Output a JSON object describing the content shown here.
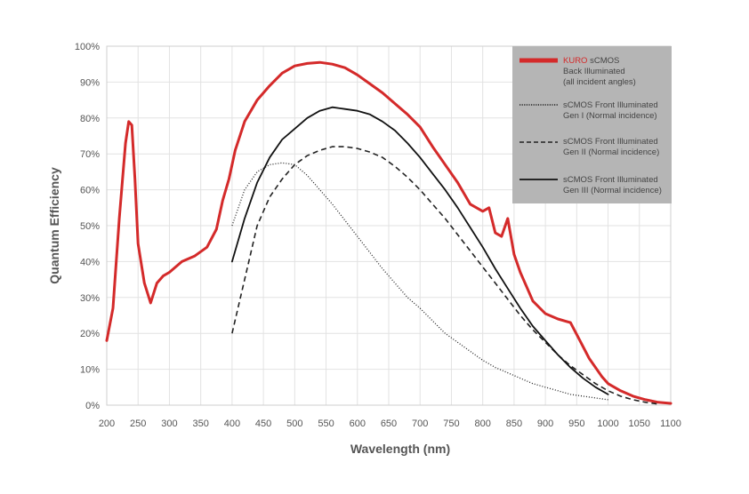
{
  "chart_data": {
    "type": "line",
    "title": "",
    "xlabel": "Wavelength (nm)",
    "ylabel": "Quantum Efficiency",
    "xlim": [
      200,
      1100
    ],
    "ylim": [
      0,
      100
    ],
    "x_ticks": [
      "200",
      "250",
      "300",
      "350",
      "400",
      "450",
      "500",
      "550",
      "600",
      "650",
      "700",
      "750",
      "800",
      "850",
      "900",
      "950",
      "1000",
      "1050",
      "1100"
    ],
    "y_ticks": [
      "0%",
      "10%",
      "20%",
      "30%",
      "40%",
      "50%",
      "60%",
      "70%",
      "80%",
      "90%",
      "100%"
    ],
    "grid": true,
    "legend_position": "top-right",
    "series": [
      {
        "name": "KURO sCMOS",
        "legend_accent": "KURO",
        "legend_rest": " sCMOS",
        "legend_lines": [
          "Back Illuminated",
          "(all incident angles)"
        ],
        "color": "#d42a2a",
        "style": "thick",
        "x": [
          200,
          210,
          220,
          230,
          235,
          240,
          245,
          250,
          260,
          270,
          280,
          290,
          300,
          320,
          340,
          360,
          375,
          385,
          395,
          405,
          420,
          440,
          460,
          480,
          500,
          520,
          540,
          560,
          580,
          600,
          620,
          640,
          660,
          680,
          700,
          720,
          740,
          760,
          780,
          800,
          810,
          820,
          830,
          840,
          850,
          860,
          870,
          880,
          900,
          920,
          940,
          955,
          970,
          990,
          1000,
          1020,
          1040,
          1060,
          1080,
          1100
        ],
        "y": [
          18,
          27,
          52,
          73,
          79,
          78,
          63,
          45,
          34,
          28.5,
          34,
          36,
          37,
          40,
          41.5,
          44,
          49,
          57,
          63,
          71,
          79,
          85,
          89,
          92.5,
          94.5,
          95.2,
          95.5,
          95,
          94,
          92,
          89.5,
          87,
          84,
          81,
          77.5,
          72,
          67,
          62,
          56,
          54,
          55,
          48,
          47,
          52,
          42,
          37,
          33,
          29,
          25.5,
          24,
          23,
          18,
          13,
          8,
          6,
          4,
          2.5,
          1.5,
          0.8,
          0.5
        ]
      },
      {
        "name": "sCMOS Front Illuminated",
        "legend_lines": [
          "Gen I (Normal incidence)"
        ],
        "color": "#222222",
        "style": "dotted",
        "x": [
          400,
          420,
          440,
          460,
          480,
          500,
          520,
          540,
          560,
          580,
          600,
          620,
          640,
          660,
          680,
          700,
          720,
          740,
          760,
          780,
          800,
          820,
          840,
          860,
          880,
          900,
          920,
          940,
          960,
          980,
          1000
        ],
        "y": [
          50,
          60,
          65,
          67,
          67.5,
          67,
          64,
          60,
          56,
          51.5,
          47,
          42.5,
          38,
          34,
          30,
          27,
          23.5,
          20,
          17.5,
          15,
          12.5,
          10.5,
          9,
          7.5,
          6,
          5,
          4,
          3,
          2.5,
          2,
          1.5
        ]
      },
      {
        "name": "sCMOS Front Illuminated",
        "legend_lines": [
          "Gen II (Normal incidence)"
        ],
        "color": "#222222",
        "style": "dashed",
        "x": [
          400,
          420,
          440,
          460,
          480,
          500,
          520,
          540,
          560,
          580,
          600,
          620,
          640,
          660,
          680,
          700,
          720,
          740,
          760,
          780,
          800,
          820,
          840,
          860,
          880,
          900,
          920,
          940,
          960,
          980,
          1000,
          1020,
          1040,
          1060,
          1080
        ],
        "y": [
          20,
          35,
          50,
          58,
          63,
          67,
          69.5,
          71,
          72,
          72,
          71.5,
          70.5,
          69,
          66.5,
          63.5,
          60,
          56,
          52,
          47.5,
          43,
          38.5,
          34,
          29.5,
          25,
          21,
          17.5,
          14,
          11,
          8.5,
          6,
          4,
          2.5,
          1.5,
          0.8,
          0.3
        ]
      },
      {
        "name": "sCMOS Front Illuminated",
        "legend_lines": [
          "Gen III (Normal incidence)"
        ],
        "color": "#111111",
        "style": "solid",
        "x": [
          400,
          420,
          440,
          460,
          480,
          500,
          520,
          540,
          560,
          580,
          600,
          620,
          640,
          660,
          680,
          700,
          720,
          740,
          760,
          780,
          800,
          820,
          840,
          860,
          880,
          900,
          920,
          940,
          960,
          980,
          1000
        ],
        "y": [
          40,
          52,
          62,
          69,
          74,
          77,
          80,
          82,
          83,
          82.5,
          82,
          81,
          79,
          76.5,
          73,
          69,
          64.5,
          60,
          55,
          49.5,
          44,
          38,
          32.5,
          27,
          22,
          18,
          14,
          10.5,
          7.5,
          5,
          3
        ]
      }
    ]
  }
}
